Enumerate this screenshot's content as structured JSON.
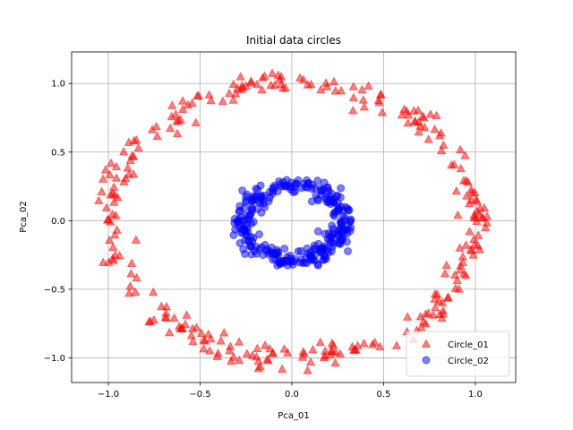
{
  "chart_data": {
    "type": "scatter",
    "title": "Initial data circles",
    "xlabel": "Pca_01",
    "ylabel": "Pca_02",
    "xlim": [
      -1.2,
      1.22
    ],
    "ylim": [
      -1.18,
      1.23
    ],
    "xticks": [
      -1.0,
      -0.5,
      0.0,
      0.5,
      1.0
    ],
    "xtick_labels": [
      "−1.0",
      "−0.5",
      "0.0",
      "0.5",
      "1.0"
    ],
    "yticks": [
      -1.0,
      -0.5,
      0.0,
      0.5,
      1.0
    ],
    "ytick_labels": [
      "−1.0",
      "−0.5",
      "0.0",
      "0.5",
      "1.0"
    ],
    "grid": true,
    "legend_position": "bottom-right",
    "series": [
      {
        "name": "Circle_01",
        "marker": "triangle",
        "color": "#ff0000",
        "radius": 1.0,
        "noise": 0.06,
        "count": 300,
        "center": [
          0,
          0
        ]
      },
      {
        "name": "Circle_02",
        "marker": "circle",
        "color": "#0000ff",
        "radius": 0.27,
        "noise": 0.05,
        "count": 300,
        "center": [
          0.01,
          -0.01
        ]
      }
    ]
  }
}
